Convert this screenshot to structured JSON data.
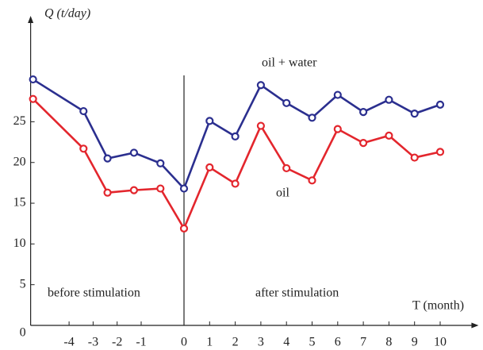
{
  "chart_data": {
    "type": "line",
    "y_label": "Q (t/day)",
    "x_label": "T (month)",
    "annotations": [
      "oil + water",
      "oil",
      "before stimulation",
      "after stimulation"
    ],
    "xlim": [
      -5.6,
      11.5
    ],
    "xticks": [
      -4,
      -3,
      -2,
      -1,
      0,
      1,
      2,
      3,
      4,
      5,
      6,
      7,
      8,
      9,
      10
    ],
    "ylim": [
      0,
      38
    ],
    "yticks": [
      0,
      5,
      10,
      15,
      20,
      25
    ],
    "series": [
      {
        "name": "oil + water",
        "color": "#2b2f8f",
        "x": [
          -5.5,
          -3.4,
          -2.4,
          -1.3,
          -0.55,
          0,
          1,
          2,
          3,
          4,
          5,
          6,
          7,
          8,
          9,
          10
        ],
        "values": [
          30.2,
          26.3,
          20.5,
          21.2,
          19.9,
          16.8,
          25.1,
          23.2,
          29.5,
          27.3,
          25.5,
          28.3,
          26.2,
          27.7,
          26.0,
          27.1
        ]
      },
      {
        "name": "oil",
        "color": "#e3262d",
        "x": [
          -5.5,
          -3.4,
          -2.4,
          -1.3,
          -0.55,
          0,
          1,
          2,
          3,
          4,
          5,
          6,
          7,
          8,
          9,
          10
        ],
        "values": [
          27.8,
          21.7,
          16.3,
          16.6,
          16.8,
          11.9,
          19.4,
          17.4,
          24.5,
          19.3,
          17.8,
          24.1,
          22.4,
          23.3,
          20.6,
          21.3
        ]
      }
    ]
  }
}
